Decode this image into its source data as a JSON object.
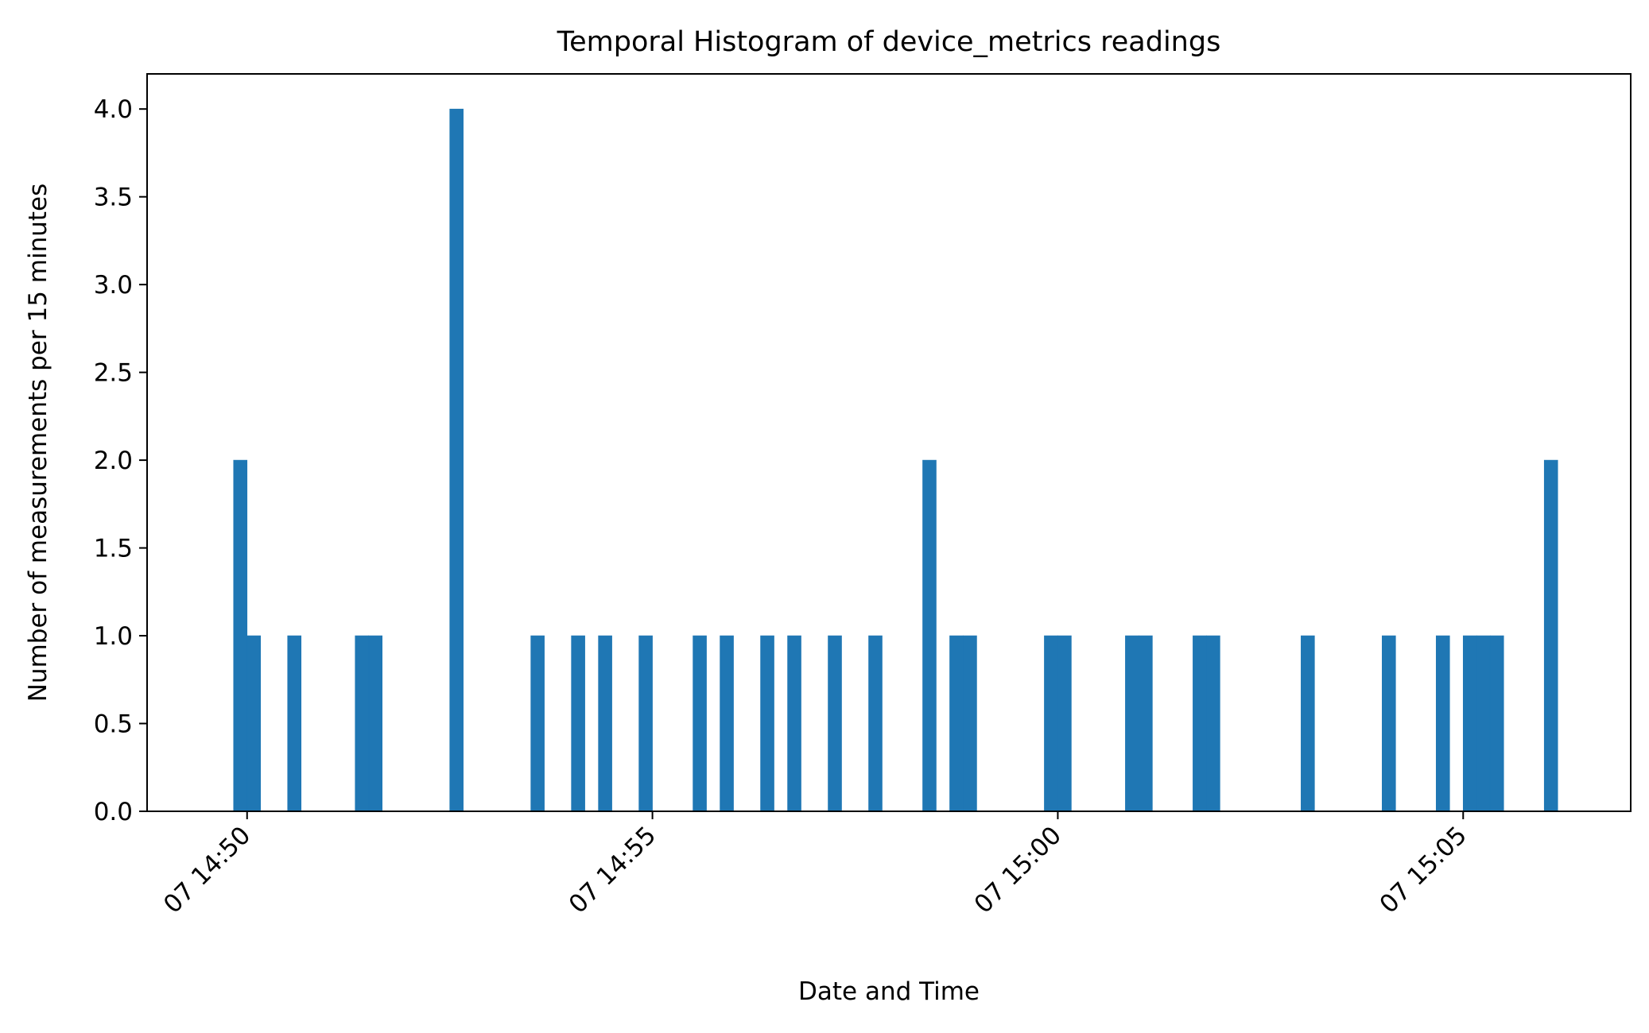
{
  "chart_data": {
    "type": "bar",
    "title": "Temporal Histogram of device_metrics readings",
    "xlabel": "Date and Time",
    "ylabel": "Number of measurements per 15 minutes",
    "xlim": [
      "07 14:48:46",
      "07 15:07:04"
    ],
    "ylim": [
      0,
      4.2
    ],
    "yticks": [
      0.0,
      0.5,
      1.0,
      1.5,
      2.0,
      2.5,
      3.0,
      3.5,
      4.0
    ],
    "ytick_labels": [
      "0.0",
      "0.5",
      "1.0",
      "1.5",
      "2.0",
      "2.5",
      "3.0",
      "3.5",
      "4.0"
    ],
    "xticks": [
      "07 14:50",
      "07 14:55",
      "07 15:00",
      "07 15:05"
    ],
    "grid": false,
    "bar_color": "#1f77b4",
    "bins": [
      {
        "start": "07 14:49:50",
        "end": "07 14:50:00",
        "value": 2
      },
      {
        "start": "07 14:50:00",
        "end": "07 14:50:10",
        "value": 1
      },
      {
        "start": "07 14:50:30",
        "end": "07 14:50:40",
        "value": 1
      },
      {
        "start": "07 14:51:20",
        "end": "07 14:51:30",
        "value": 1
      },
      {
        "start": "07 14:51:30",
        "end": "07 14:51:40",
        "value": 1
      },
      {
        "start": "07 14:52:30",
        "end": "07 14:52:40",
        "value": 4
      },
      {
        "start": "07 14:53:30",
        "end": "07 14:53:40",
        "value": 1
      },
      {
        "start": "07 14:54:00",
        "end": "07 14:54:10",
        "value": 1
      },
      {
        "start": "07 14:54:20",
        "end": "07 14:54:30",
        "value": 1
      },
      {
        "start": "07 14:54:50",
        "end": "07 14:55:00",
        "value": 1
      },
      {
        "start": "07 14:55:30",
        "end": "07 14:55:40",
        "value": 1
      },
      {
        "start": "07 14:55:50",
        "end": "07 14:56:00",
        "value": 1
      },
      {
        "start": "07 14:56:20",
        "end": "07 14:56:30",
        "value": 1
      },
      {
        "start": "07 14:56:40",
        "end": "07 14:56:50",
        "value": 1
      },
      {
        "start": "07 14:57:10",
        "end": "07 14:57:20",
        "value": 1
      },
      {
        "start": "07 14:57:40",
        "end": "07 14:57:50",
        "value": 1
      },
      {
        "start": "07 14:58:20",
        "end": "07 14:58:30",
        "value": 2
      },
      {
        "start": "07 14:58:40",
        "end": "07 14:58:50",
        "value": 1
      },
      {
        "start": "07 14:58:50",
        "end": "07 14:59:00",
        "value": 1
      },
      {
        "start": "07 14:59:50",
        "end": "07 15:00:00",
        "value": 1
      },
      {
        "start": "07 15:00:00",
        "end": "07 15:00:10",
        "value": 1
      },
      {
        "start": "07 15:00:50",
        "end": "07 15:01:00",
        "value": 1
      },
      {
        "start": "07 15:01:00",
        "end": "07 15:01:10",
        "value": 1
      },
      {
        "start": "07 15:01:40",
        "end": "07 15:01:50",
        "value": 1
      },
      {
        "start": "07 15:01:50",
        "end": "07 15:02:00",
        "value": 1
      },
      {
        "start": "07 15:03:00",
        "end": "07 15:03:10",
        "value": 1
      },
      {
        "start": "07 15:04:00",
        "end": "07 15:04:10",
        "value": 1
      },
      {
        "start": "07 15:04:40",
        "end": "07 15:04:50",
        "value": 1
      },
      {
        "start": "07 15:05:00",
        "end": "07 15:05:10",
        "value": 1
      },
      {
        "start": "07 15:05:10",
        "end": "07 15:05:20",
        "value": 1
      },
      {
        "start": "07 15:05:20",
        "end": "07 15:05:30",
        "value": 1
      },
      {
        "start": "07 15:06:00",
        "end": "07 15:06:10",
        "value": 2
      }
    ]
  }
}
